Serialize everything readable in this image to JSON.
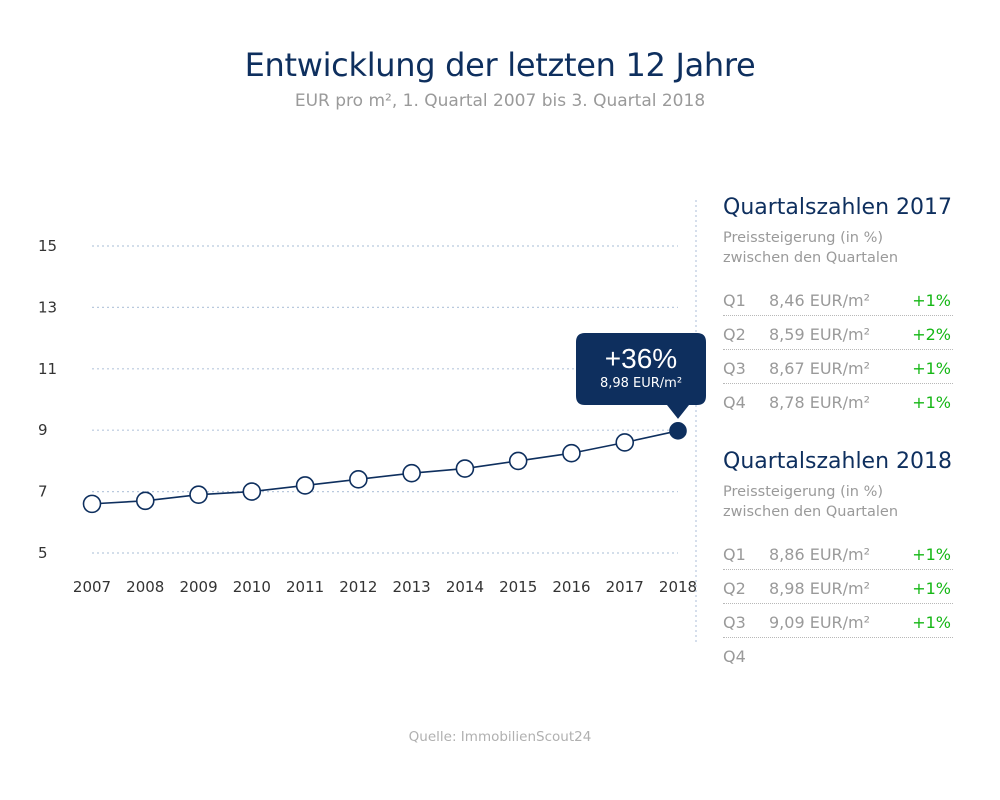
{
  "chart_data": {
    "type": "line",
    "title": "Entwicklung der letzten 12 Jahre",
    "subtitle": "EUR pro m², 1. Quartal 2007 bis 3. Quartal 2018",
    "x": [
      "2007",
      "2008",
      "2009",
      "2010",
      "2011",
      "2012",
      "2013",
      "2014",
      "2015",
      "2016",
      "2017",
      "2018"
    ],
    "values": [
      6.6,
      6.7,
      6.9,
      7.0,
      7.2,
      7.4,
      7.6,
      7.75,
      8.0,
      8.25,
      8.6,
      8.98
    ],
    "ylim": [
      5,
      15
    ],
    "yticks": [
      "5",
      "7",
      "9",
      "11",
      "13",
      "15"
    ],
    "grid": true,
    "callout": {
      "pct": "+36%",
      "value": "8,98 EUR/m²"
    }
  },
  "colors": {
    "primary": "#0e2f5e",
    "positive": "#16b716",
    "muted": "#9a9a9a"
  },
  "panel2017": {
    "title": "Quartalszahlen 2017",
    "sub1": "Preissteigerung (in %)",
    "sub2": "zwischen den Quartalen",
    "rows": [
      {
        "q": "Q1",
        "v": "8,46 EUR/m²",
        "p": "+1%"
      },
      {
        "q": "Q2",
        "v": "8,59 EUR/m²",
        "p": "+2%"
      },
      {
        "q": "Q3",
        "v": "8,67 EUR/m²",
        "p": "+1%"
      },
      {
        "q": "Q4",
        "v": "8,78 EUR/m²",
        "p": "+1%"
      }
    ]
  },
  "panel2018": {
    "title": "Quartalszahlen 2018",
    "sub1": "Preissteigerung (in %)",
    "sub2": "zwischen den Quartalen",
    "rows": [
      {
        "q": "Q1",
        "v": "8,86 EUR/m²",
        "p": "+1%"
      },
      {
        "q": "Q2",
        "v": "8,98 EUR/m²",
        "p": "+1%"
      },
      {
        "q": "Q3",
        "v": "9,09 EUR/m²",
        "p": "+1%"
      },
      {
        "q": "Q4",
        "v": "",
        "p": ""
      }
    ]
  },
  "source": "Quelle: ImmobilienScout24"
}
